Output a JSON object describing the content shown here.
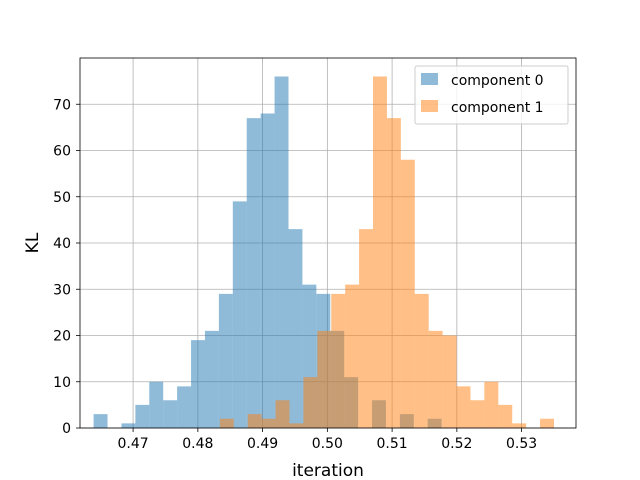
{
  "chart_data": {
    "type": "histogram",
    "title": "",
    "xlabel": "iteration",
    "ylabel": "KL",
    "xlim": [
      0.4618,
      0.5384
    ],
    "ylim": [
      0,
      80
    ],
    "xticks": [
      0.47,
      0.48,
      0.49,
      0.5,
      0.51,
      0.52,
      0.53
    ],
    "xtick_labels": [
      "0.47",
      "0.48",
      "0.49",
      "0.50",
      "0.51",
      "0.52",
      "0.53"
    ],
    "yticks": [
      0,
      10,
      20,
      30,
      40,
      50,
      60,
      70
    ],
    "ytick_labels": [
      "0",
      "10",
      "20",
      "30",
      "40",
      "50",
      "60",
      "70"
    ],
    "grid": true,
    "legend_position": "top-right",
    "series": [
      {
        "name": "component 0",
        "color": "#1f77b4",
        "alpha": 0.5,
        "bin_start": 0.4639,
        "bin_width": 0.00215,
        "counts": [
          3,
          0,
          1,
          5,
          10,
          6,
          9,
          19,
          21,
          29,
          49,
          67,
          68,
          76,
          43,
          31,
          29,
          21,
          11,
          0,
          6,
          0,
          3,
          0,
          2
        ]
      },
      {
        "name": "component 1",
        "color": "#ff7f0e",
        "alpha": 0.5,
        "bin_start": 0.4834,
        "bin_width": 0.00215,
        "counts": [
          2,
          0,
          3,
          2,
          6,
          1,
          11,
          21,
          29,
          31,
          43,
          76,
          67,
          58,
          29,
          21,
          20,
          9,
          6,
          10,
          5,
          1,
          0,
          2
        ]
      }
    ]
  }
}
